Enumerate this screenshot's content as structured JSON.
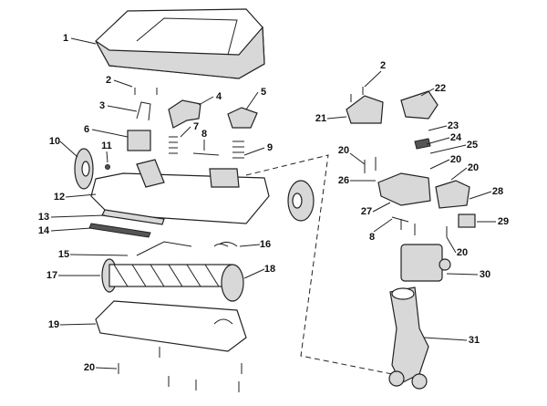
{
  "callouts": [
    "1",
    "2",
    "3",
    "4",
    "5",
    "6",
    "7",
    "8",
    "9",
    "10",
    "11",
    "12",
    "13",
    "14",
    "15",
    "16",
    "17",
    "18",
    "19",
    "20",
    "2",
    "22",
    "21",
    "23",
    "24",
    "25",
    "20",
    "20",
    "26",
    "20",
    "28",
    "27",
    "29",
    "8",
    "20",
    "30",
    "31"
  ]
}
